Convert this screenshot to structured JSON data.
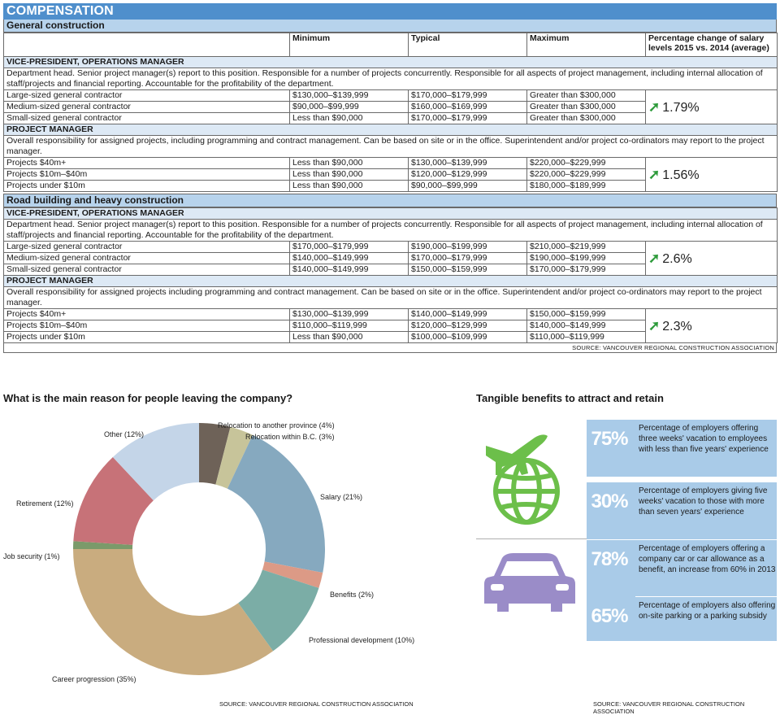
{
  "banner": "COMPENSATION",
  "columns": {
    "minimum": "Minimum",
    "typical": "Typical",
    "maximum": "Maximum",
    "pct": "Percentage change of salary levels 2015 vs. 2014 (average)"
  },
  "sections": {
    "general": {
      "title": "General construction",
      "vp": {
        "role": "VICE-PRESIDENT, OPERATIONS MANAGER",
        "desc": "Department head. Senior project manager(s) report to this position. Responsible for a number of projects concurrently. Responsible for all aspects of project management, including internal allocation of staff/projects and financial reporting. Accountable for the profitability of the department.",
        "pct": "1.79%",
        "rows": [
          {
            "label": "Large-sized general contractor",
            "min": "$130,000–$139,999",
            "typ": "$170,000–$179,999",
            "max": "Greater than $300,000"
          },
          {
            "label": "Medium-sized general contractor",
            "min": "$90,000–$99,999",
            "typ": "$160,000–$169,999",
            "max": "Greater than $300,000"
          },
          {
            "label": "Small-sized general contractor",
            "min": "Less than $90,000",
            "typ": "$170,000–$179,999",
            "max": "Greater than $300,000"
          }
        ]
      },
      "pm": {
        "role": "PROJECT MANAGER",
        "desc": "Overall responsibility for assigned projects, including programming and contract management. Can be based on site or in the office. Superintendent and/or project co-ordinators may report to the project manager.",
        "pct": "1.56%",
        "rows": [
          {
            "label": "Projects $40m+",
            "min": "Less than $90,000",
            "typ": "$130,000–$139,999",
            "max": "$220,000–$229,999"
          },
          {
            "label": "Projects $10m–$40m",
            "min": "Less than $90,000",
            "typ": "$120,000–$129,999",
            "max": "$220,000–$229,999"
          },
          {
            "label": "Projects under $10m",
            "min": "Less than $90,000",
            "typ": "$90,000–$99,999",
            "max": "$180,000–$189,999"
          }
        ]
      }
    },
    "road": {
      "title": "Road building and heavy construction",
      "vp": {
        "role": "VICE-PRESIDENT, OPERATIONS MANAGER",
        "desc": "Department head. Senior project manager(s) report to this position. Responsible for a number of projects concurrently. Responsible for all aspects of project management, including internal allocation of staff/projects and financial reporting. Accountable for the profitability of the department.",
        "pct": "2.6%",
        "rows": [
          {
            "label": "Large-sized general contractor",
            "min": "$170,000–$179,999",
            "typ": "$190,000–$199,999",
            "max": "$210,000–$219,999"
          },
          {
            "label": "Medium-sized general contractor",
            "min": "$140,000–$149,999",
            "typ": "$170,000–$179,999",
            "max": "$190,000–$199,999"
          },
          {
            "label": "Small-sized general contractor",
            "min": "$140,000–$149,999",
            "typ": "$150,000–$159,999",
            "max": "$170,000–$179,999"
          }
        ]
      },
      "pm": {
        "role": "PROJECT MANAGER",
        "desc": "Overall responsibility for assigned projects including programming and contract management. Can be based on site or in the office. Superintendent and/or project co-ordinators may report to the project manager.",
        "pct": "2.3%",
        "rows": [
          {
            "label": "Projects $40m+",
            "min": "$130,000–$139,999",
            "typ": "$140,000–$149,999",
            "max": "$150,000–$159,999"
          },
          {
            "label": "Projects $10m–$40m",
            "min": "$110,000–$119,999",
            "typ": "$120,000–$129,999",
            "max": "$140,000–$149,999"
          },
          {
            "label": "Projects under $10m",
            "min": "Less than $90,000",
            "typ": "$100,000–$109,999",
            "max": "$110,000–$119,999"
          }
        ]
      }
    }
  },
  "source_text": "SOURCE: VANCOUVER REGIONAL CONSTRUCTION ASSOCIATION",
  "chart_data": {
    "type": "pie",
    "title": "What is the main reason for people leaving the company?",
    "donut": true,
    "slices": [
      {
        "label": "Relocation to another province (4%)",
        "value": 4,
        "color": "#6e6258"
      },
      {
        "label": "Relocation within B.C. (3%)",
        "value": 3,
        "color": "#c7c49a"
      },
      {
        "label": "Salary (21%)",
        "value": 21,
        "color": "#86a9bf"
      },
      {
        "label": "Benefits (2%)",
        "value": 2,
        "color": "#dc9a86"
      },
      {
        "label": "Professional development (10%)",
        "value": 10,
        "color": "#7bada6"
      },
      {
        "label": "Career progression (35%)",
        "value": 35,
        "color": "#c9ac7f"
      },
      {
        "label": "Job security (1%)",
        "value": 1,
        "color": "#7b9a6a"
      },
      {
        "label": "Retirement (12%)",
        "value": 12,
        "color": "#c77278"
      },
      {
        "label": "Other (12%)",
        "value": 12,
        "color": "#c4d5e8"
      }
    ]
  },
  "benefits": {
    "title": "Tangible benefits to attract and retain",
    "items": [
      {
        "value": "75%",
        "text": "Percentage of employers offering three weeks' vacation to employees with less than five years' experience"
      },
      {
        "value": "30%",
        "text": "Percentage of employers giving five weeks' vacation to those with more than seven years' experience"
      },
      {
        "value": "78%",
        "text": "Percentage of employers offering a company car or car allowance as a benefit, an increase from 60% in 2013"
      },
      {
        "value": "65%",
        "text": "Percentage of employers also offering on-site parking or a parking subsidy"
      }
    ],
    "icons": [
      "plane-globe-icon",
      "car-icon"
    ],
    "colors": {
      "globe": "#6cbf4a",
      "car": "#9a8cc8",
      "panel": "#a9cbe8"
    }
  }
}
